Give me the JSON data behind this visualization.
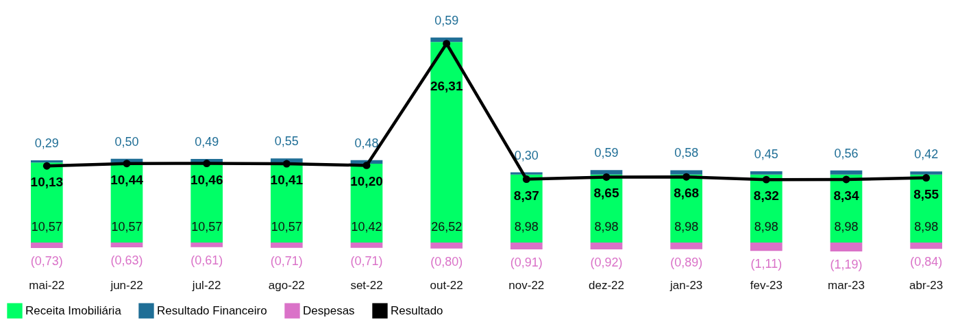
{
  "chart_data": {
    "type": "bar",
    "stacked": true,
    "categories": [
      "mai-22",
      "jun-22",
      "jul-22",
      "ago-22",
      "set-22",
      "out-22",
      "nov-22",
      "dez-22",
      "jan-23",
      "fev-23",
      "mar-23",
      "abr-23"
    ],
    "legend": "bottom",
    "tick_labels": "x",
    "series": [
      {
        "name": "Receita Imobiliária",
        "color": "#00ff66",
        "values": [
          10.57,
          10.57,
          10.57,
          10.57,
          10.42,
          26.52,
          8.98,
          8.98,
          8.98,
          8.98,
          8.98,
          8.98
        ],
        "value_labels": [
          "10,57",
          "10,57",
          "10,57",
          "10,57",
          "10,42",
          "26,52",
          "8,98",
          "8,98",
          "8,98",
          "8,98",
          "8,98",
          "8,98"
        ]
      },
      {
        "name": "Resultado Financeiro",
        "color": "#1f6e96",
        "values": [
          0.29,
          0.5,
          0.49,
          0.55,
          0.48,
          0.59,
          0.3,
          0.59,
          0.58,
          0.45,
          0.56,
          0.42
        ],
        "value_labels": [
          "0,29",
          "0,50",
          "0,49",
          "0,55",
          "0,48",
          "0,59",
          "0,30",
          "0,59",
          "0,58",
          "0,45",
          "0,56",
          "0,42"
        ]
      },
      {
        "name": "Despesas",
        "color": "#da72c8",
        "values": [
          -0.73,
          -0.63,
          -0.61,
          -0.71,
          -0.71,
          -0.8,
          -0.91,
          -0.92,
          -0.89,
          -1.11,
          -1.19,
          -0.84
        ],
        "value_labels": [
          "(0,73)",
          "(0,63)",
          "(0,61)",
          "(0,71)",
          "(0,71)",
          "(0,80)",
          "(0,91)",
          "(0,92)",
          "(0,89)",
          "(1,11)",
          "(1,19)",
          "(0,84)"
        ]
      },
      {
        "name": "Resultado",
        "type": "line",
        "color": "#000000",
        "marker": "circle",
        "values": [
          10.13,
          10.44,
          10.46,
          10.41,
          10.2,
          26.31,
          8.37,
          8.65,
          8.68,
          8.32,
          8.34,
          8.55
        ],
        "value_labels": [
          "10,13",
          "10,44",
          "10,46",
          "10,41",
          "10,20",
          "26,31",
          "8,37",
          "8,65",
          "8,68",
          "8,32",
          "8,34",
          "8,55"
        ]
      }
    ]
  }
}
